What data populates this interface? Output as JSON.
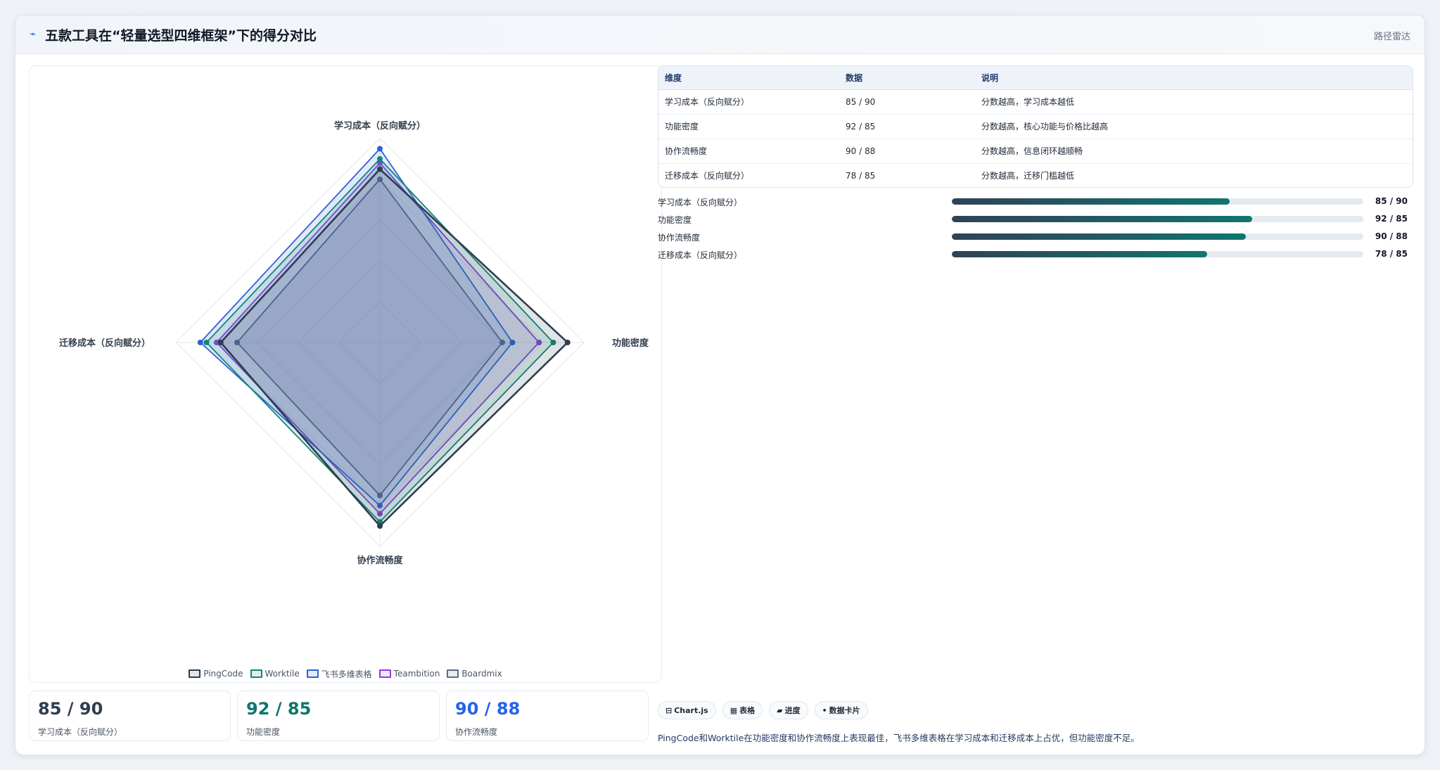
{
  "header": {
    "icon": "line-chart-icon",
    "title": "五款工具在“轻量选型四维框架”下的得分对比",
    "route_label": "路径雷达"
  },
  "chart_data": {
    "type": "radar",
    "axes": [
      "学习成本（反向赋分）",
      "功能密度",
      "协作流畅度",
      "迁移成本（反向赋分）"
    ],
    "range": [
      0,
      100
    ],
    "grid": true,
    "legend_position": "bottom",
    "series": [
      {
        "name": "PingCode",
        "values": [
          85,
          92,
          90,
          78
        ],
        "color": "#2d3e50"
      },
      {
        "name": "Worktile",
        "values": [
          90,
          85,
          88,
          85
        ],
        "color": "#12857a"
      },
      {
        "name": "飞书多维表格",
        "values": [
          95,
          65,
          80,
          88
        ],
        "color": "#2f62d8"
      },
      {
        "name": "Teambition",
        "values": [
          88,
          78,
          84,
          80
        ],
        "color": "#8b3fe0"
      },
      {
        "name": "Boardmix",
        "values": [
          80,
          60,
          75,
          70
        ],
        "color": "#5b6b8c"
      }
    ]
  },
  "stats": [
    {
      "value": "85 / 90",
      "label": "学习成本（反向赋分）",
      "color": "#2d3e50"
    },
    {
      "value": "92 / 85",
      "label": "功能密度",
      "color": "#0f766e"
    },
    {
      "value": "90 / 88",
      "label": "协作流畅度",
      "color": "#2563eb"
    }
  ],
  "table": {
    "headers": [
      "维度",
      "数据",
      "说明"
    ],
    "rows": [
      [
        "学习成本（反向赋分）",
        "85 / 90",
        "分数越高，学习成本越低"
      ],
      [
        "功能密度",
        "92 / 85",
        "分数越高，核心功能与价格比越高"
      ],
      [
        "协作流畅度",
        "90 / 88",
        "分数越高，信息闭环越顺畅"
      ],
      [
        "迁移成本（反向赋分）",
        "78 / 85",
        "分数越高，迁移门槛越低"
      ]
    ]
  },
  "bars": [
    {
      "label": "学习成本（反向赋分）",
      "value": "85 / 90",
      "fraction": 0.675
    },
    {
      "label": "功能密度",
      "value": "92 / 85",
      "fraction": 0.73
    },
    {
      "label": "协作流畅度",
      "value": "90 / 88",
      "fraction": 0.715
    },
    {
      "label": "迁移成本（反向赋分）",
      "value": "78 / 85",
      "fraction": 0.62
    }
  ],
  "chips": [
    {
      "icon": "chart-icon",
      "glyph": "⊟",
      "label": "Chart.js"
    },
    {
      "icon": "table-icon",
      "glyph": "▦",
      "label": "表格"
    },
    {
      "icon": "progress-icon",
      "glyph": "▰",
      "label": "进度"
    },
    {
      "icon": "card-icon",
      "glyph": "•",
      "label": "数据卡片"
    }
  ],
  "summary": "PingCode和Worktile在功能密度和协作流畅度上表现最佳，飞书多维表格在学习成本和迁移成本上占优，但功能密度不足。"
}
